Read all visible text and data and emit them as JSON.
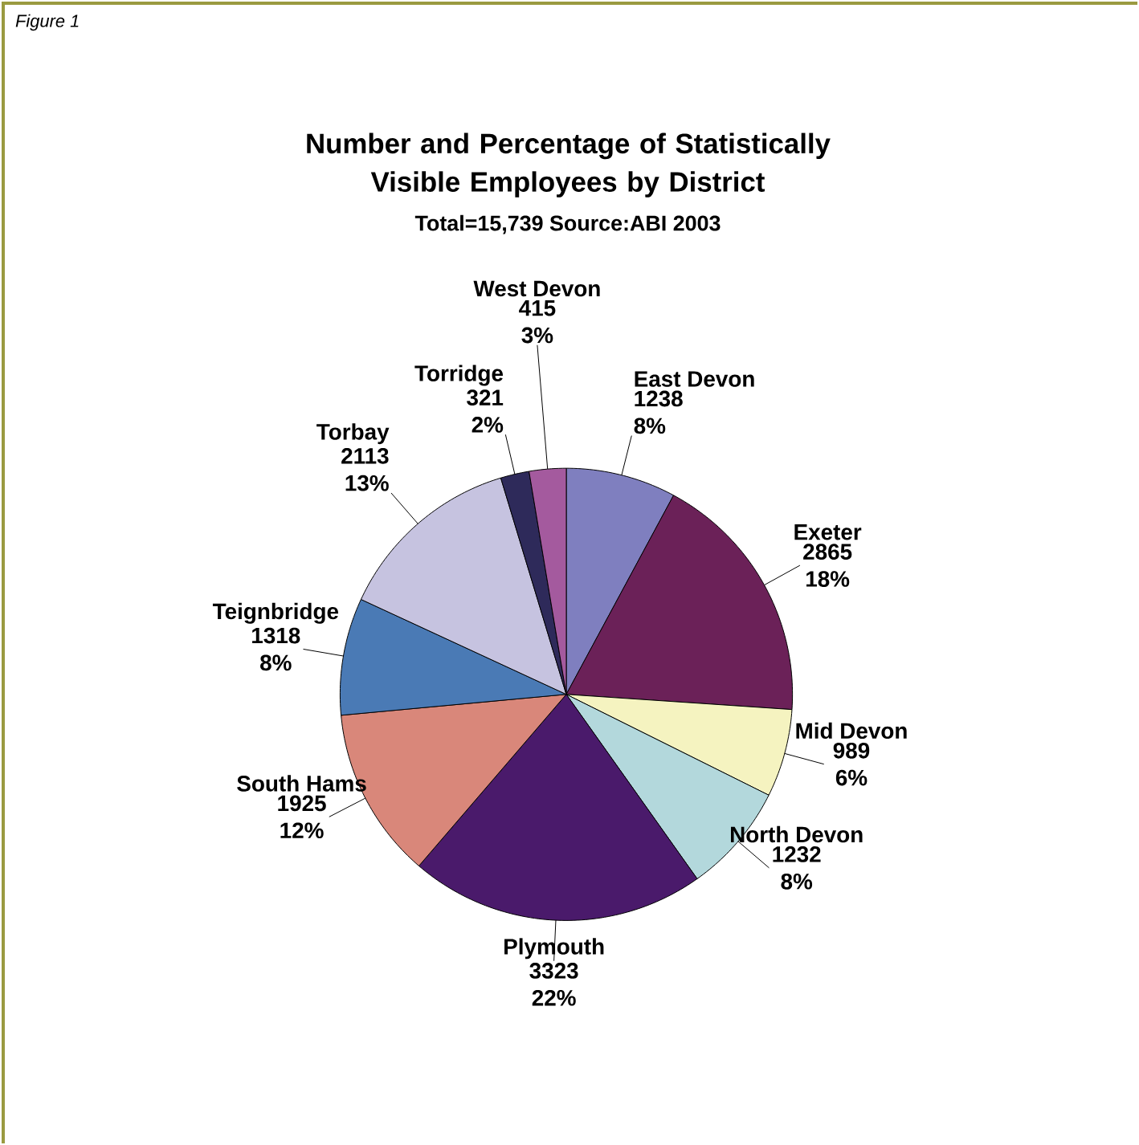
{
  "chart_data": {
    "type": "pie",
    "title": "Number and Percentage of Statistically Visible Employees by District",
    "subtitle": "Total=15,739 Source:ABI 2003",
    "annotations": [
      "Figure 1"
    ],
    "categories": [
      "East Devon",
      "Exeter",
      "Mid Devon",
      "North Devon",
      "Plymouth",
      "South Hams",
      "Teignbridge",
      "Torbay",
      "Torridge",
      "West Devon"
    ],
    "values": [
      1238,
      2865,
      989,
      1232,
      3323,
      1925,
      1318,
      2113,
      321,
      415
    ],
    "value_labels": [
      "1238 8%",
      "2865 18%",
      "989 6%",
      "1232 8%",
      "3323 22%",
      "1925 12%",
      "1318 8%",
      "2113 13%",
      "321 2%",
      "415 3%"
    ],
    "colors": [
      "#7f7fbf",
      "#6b2158",
      "#f5f3c0",
      "#b3d8dc",
      "#4a1a6b",
      "#d9877a",
      "#4a7ab5",
      "#c6c3e0",
      "#2e2a5a",
      "#a45a9e"
    ]
  }
}
